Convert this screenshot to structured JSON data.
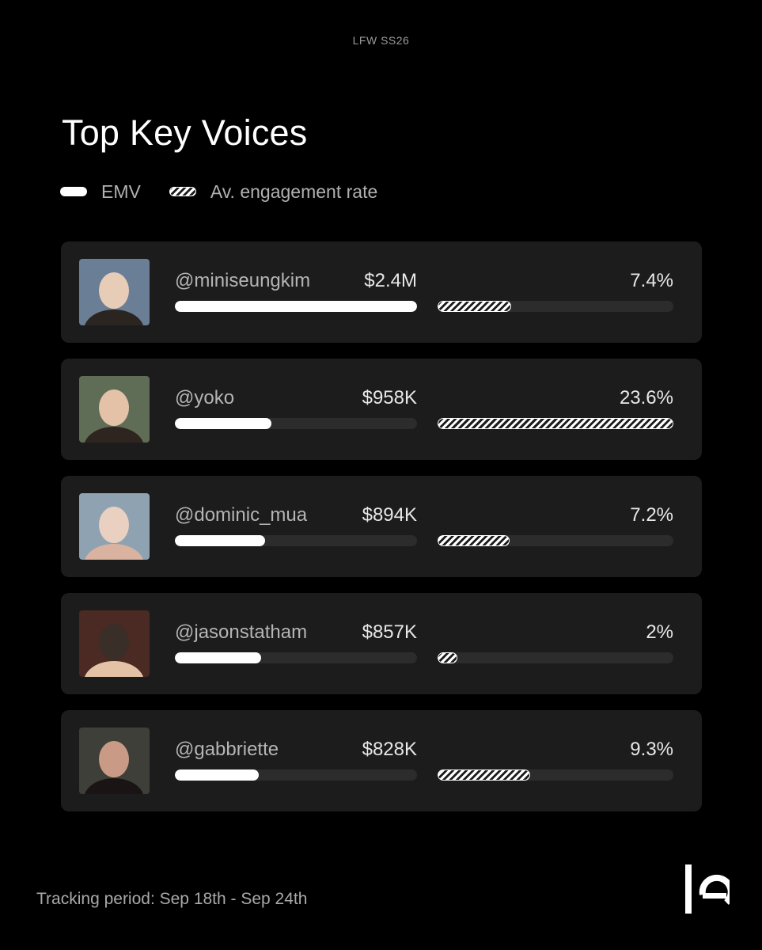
{
  "header": {
    "eyebrow": "LFW SS26",
    "title": "Top Key Voices"
  },
  "legend": {
    "emv_label": "EMV",
    "rate_label": "Av. engagement rate"
  },
  "chart_data": {
    "type": "bar",
    "title": "Top Key Voices",
    "categories": [
      "@miniseungkim",
      "@yoko",
      "@dominic_mua",
      "@jasonstatham",
      "@gabbriette"
    ],
    "series": [
      {
        "name": "EMV",
        "values": [
          2400000,
          958000,
          894000,
          857000,
          828000
        ],
        "labels": [
          "$2.4M",
          "$958K",
          "$894K",
          "$857K",
          "$828K"
        ]
      },
      {
        "name": "Av. engagement rate",
        "values": [
          7.4,
          23.6,
          7.2,
          2,
          9.3
        ],
        "labels": [
          "7.4%",
          "23.6%",
          "7.2%",
          "2%",
          "9.3%"
        ]
      }
    ],
    "legend": "top-left",
    "grid": false
  },
  "rows": [
    {
      "handle": "@miniseungkim",
      "emv": "$2.4M",
      "rate": "7.4%",
      "avatar": "person-photo"
    },
    {
      "handle": "@yoko",
      "emv": "$958K",
      "rate": "23.6%",
      "avatar": "person-photo"
    },
    {
      "handle": "@dominic_mua",
      "emv": "$894K",
      "rate": "7.2%",
      "avatar": "person-photo"
    },
    {
      "handle": "@jasonstatham",
      "emv": "$857K",
      "rate": "2%",
      "avatar": "person-photo"
    },
    {
      "handle": "@gabbriette",
      "emv": "$828K",
      "rate": "9.3%",
      "avatar": "person-photo"
    }
  ],
  "footer": {
    "tracking": "Tracking period: Sep 18th - Sep 24th"
  },
  "colors": {
    "background": "#000000",
    "card": "#1c1c1c",
    "track": "#2c2c2c",
    "bar": "#ffffff"
  },
  "icons": {
    "logo": "brand-logo-icon"
  }
}
